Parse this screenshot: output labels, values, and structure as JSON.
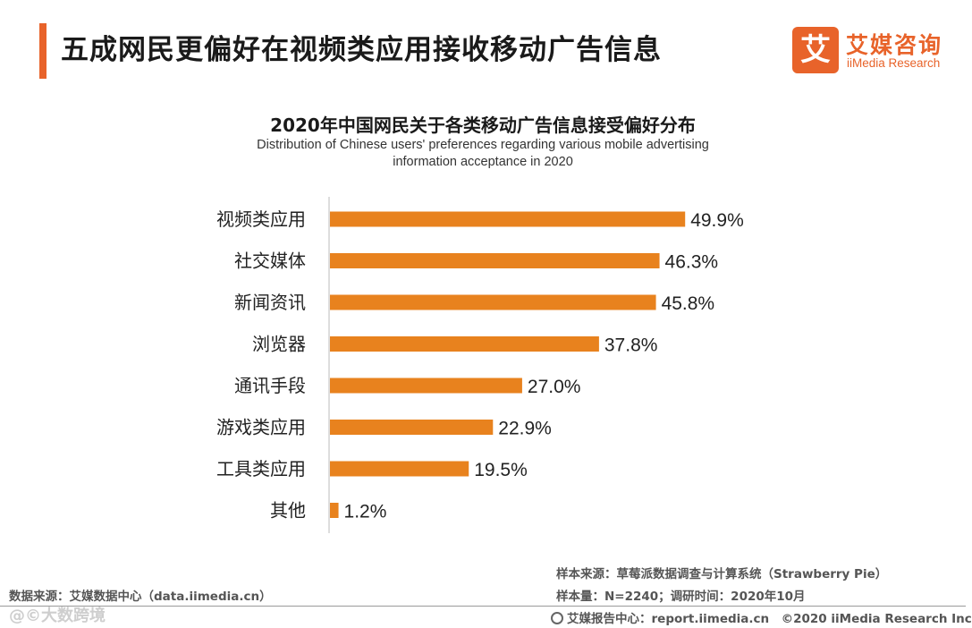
{
  "header": {
    "title": "五成网民更偏好在视频类应用接收移动广告信息",
    "logo_mark": "艾",
    "logo_cn": "艾媒咨询",
    "logo_en": "iiMedia Research",
    "accent_color": "#e8632a"
  },
  "chart_data": {
    "type": "bar",
    "orientation": "horizontal",
    "title": "2020年中国网民关于各类移动广告信息接受偏好分布",
    "subtitle_line1": "Distribution of Chinese users' preferences regarding various mobile advertising",
    "subtitle_line2": "information acceptance in 2020",
    "categories": [
      "视频类应用",
      "社交媒体",
      "新闻资讯",
      "浏览器",
      "通讯手段",
      "游戏类应用",
      "工具类应用",
      "其他"
    ],
    "values": [
      49.9,
      46.3,
      45.8,
      37.8,
      27.0,
      22.9,
      19.5,
      1.2
    ],
    "value_labels": [
      "49.9%",
      "46.3%",
      "45.8%",
      "37.8%",
      "27.0%",
      "22.9%",
      "19.5%",
      "1.2%"
    ],
    "unit": "%",
    "xlim": [
      0,
      50
    ],
    "bar_color": "#e8821e",
    "grid": false
  },
  "footer": {
    "data_source": "数据来源：艾媒数据中心（data.iimedia.cn）",
    "sample_source": "样本来源：草莓派数据调查与计算系统（Strawberry Pie）",
    "sample_size": "样本量：N=2240；调研时间：2020年10月",
    "report_center": "艾媒报告中心：report.iimedia.cn　©2020  iiMedia Research  Inc",
    "watermark": "@©大数跨境"
  }
}
